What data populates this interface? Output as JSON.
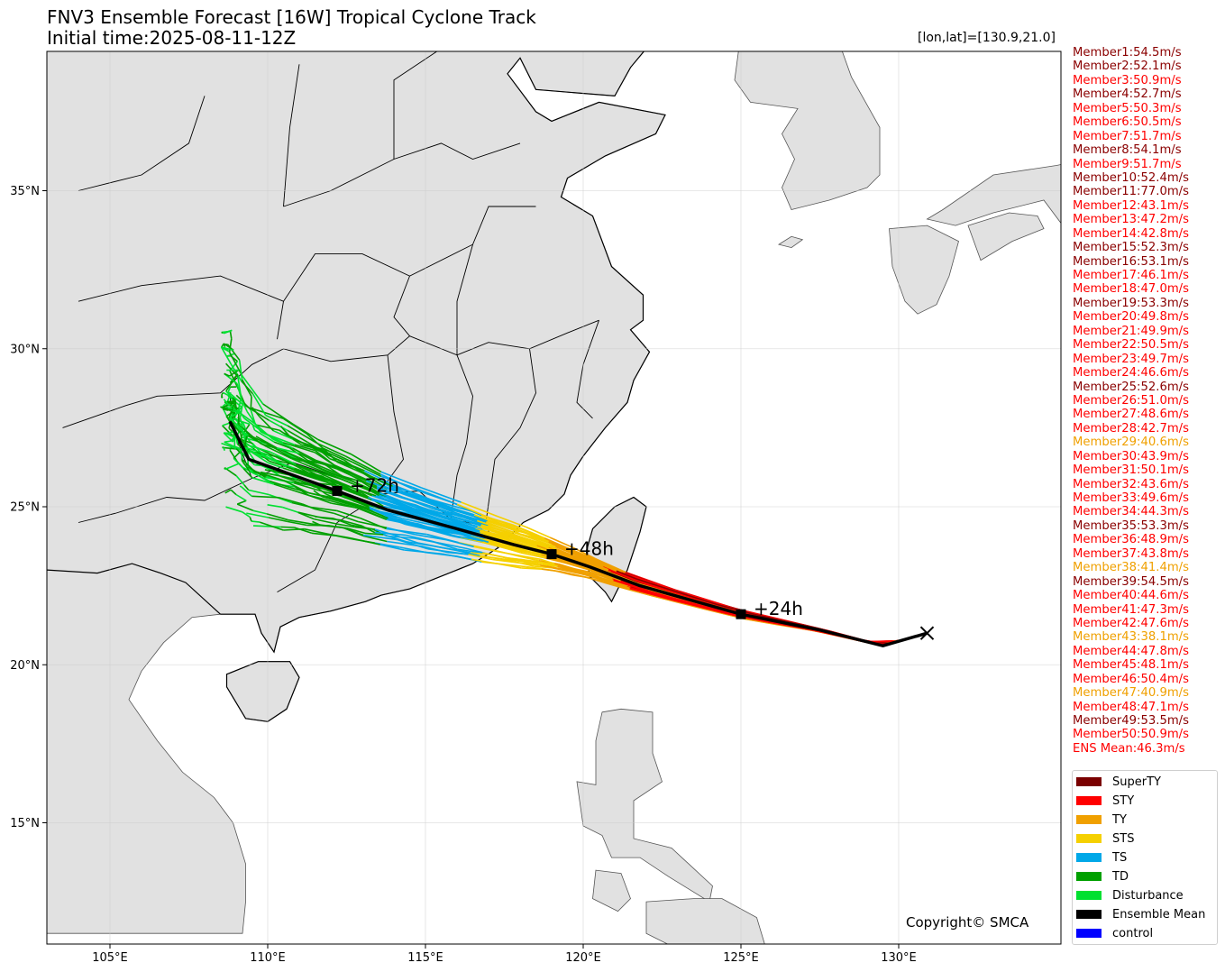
{
  "header": {
    "title_line1": "FNV3 Ensemble Forecast [16W] Tropical Cyclone Track",
    "title_line2": "Initial time:2025-08-11-12Z",
    "coord_readout": "[lon,lat]=[130.9,21.0]"
  },
  "map": {
    "lon_ticks": [
      "105°E",
      "110°E",
      "115°E",
      "120°E",
      "125°E",
      "130°E"
    ],
    "lat_ticks": [
      "15°N",
      "20°N",
      "25°N",
      "30°N",
      "35°N"
    ],
    "land_color": "#e1e1e1",
    "sea_color": "#ffffff",
    "copyright": "Copyright© SMCA",
    "time_labels": [
      "+24h",
      "+48h",
      "+72h"
    ],
    "initial_position": [
      130.9,
      21.0
    ],
    "ensemble_mean_track": [
      [
        130.9,
        21.0
      ],
      [
        129.5,
        20.6
      ],
      [
        127.5,
        21.1
      ],
      [
        125.0,
        21.6
      ],
      [
        121.8,
        22.5
      ],
      [
        120.2,
        23.1
      ],
      [
        119.0,
        23.5
      ],
      [
        117.8,
        23.8
      ],
      [
        116.0,
        24.3
      ],
      [
        113.8,
        24.9
      ],
      [
        112.2,
        25.5
      ],
      [
        110.8,
        26.0
      ],
      [
        109.4,
        26.5
      ],
      [
        109.1,
        27.1
      ],
      [
        108.8,
        27.7
      ]
    ],
    "mean_markers": [
      {
        "label": "+24h",
        "lon": 125.0,
        "lat": 21.6
      },
      {
        "label": "+48h",
        "lon": 119.0,
        "lat": 23.5
      },
      {
        "label": "+72h",
        "lon": 112.2,
        "lat": 25.5
      }
    ]
  },
  "members": [
    {
      "label": "Member1:54.5m/s",
      "color": "#8b0000"
    },
    {
      "label": "Member2:52.1m/s",
      "color": "#8b0000"
    },
    {
      "label": "Member3:50.9m/s",
      "color": "#ff0000"
    },
    {
      "label": "Member4:52.7m/s",
      "color": "#8b0000"
    },
    {
      "label": "Member5:50.3m/s",
      "color": "#ff0000"
    },
    {
      "label": "Member6:50.5m/s",
      "color": "#ff0000"
    },
    {
      "label": "Member7:51.7m/s",
      "color": "#ff0000"
    },
    {
      "label": "Member8:54.1m/s",
      "color": "#8b0000"
    },
    {
      "label": "Member9:51.7m/s",
      "color": "#ff0000"
    },
    {
      "label": "Member10:52.4m/s",
      "color": "#8b0000"
    },
    {
      "label": "Member11:77.0m/s",
      "color": "#8b0000"
    },
    {
      "label": "Member12:43.1m/s",
      "color": "#ff0000"
    },
    {
      "label": "Member13:47.2m/s",
      "color": "#ff0000"
    },
    {
      "label": "Member14:42.8m/s",
      "color": "#ff0000"
    },
    {
      "label": "Member15:52.3m/s",
      "color": "#8b0000"
    },
    {
      "label": "Member16:53.1m/s",
      "color": "#8b0000"
    },
    {
      "label": "Member17:46.1m/s",
      "color": "#ff0000"
    },
    {
      "label": "Member18:47.0m/s",
      "color": "#ff0000"
    },
    {
      "label": "Member19:53.3m/s",
      "color": "#8b0000"
    },
    {
      "label": "Member20:49.8m/s",
      "color": "#ff0000"
    },
    {
      "label": "Member21:49.9m/s",
      "color": "#ff0000"
    },
    {
      "label": "Member22:50.5m/s",
      "color": "#ff0000"
    },
    {
      "label": "Member23:49.7m/s",
      "color": "#ff0000"
    },
    {
      "label": "Member24:46.6m/s",
      "color": "#ff0000"
    },
    {
      "label": "Member25:52.6m/s",
      "color": "#8b0000"
    },
    {
      "label": "Member26:51.0m/s",
      "color": "#ff0000"
    },
    {
      "label": "Member27:48.6m/s",
      "color": "#ff0000"
    },
    {
      "label": "Member28:42.7m/s",
      "color": "#ff0000"
    },
    {
      "label": "Member29:40.6m/s",
      "color": "#f0a000"
    },
    {
      "label": "Member30:43.9m/s",
      "color": "#ff0000"
    },
    {
      "label": "Member31:50.1m/s",
      "color": "#ff0000"
    },
    {
      "label": "Member32:43.6m/s",
      "color": "#ff0000"
    },
    {
      "label": "Member33:49.6m/s",
      "color": "#ff0000"
    },
    {
      "label": "Member34:44.3m/s",
      "color": "#ff0000"
    },
    {
      "label": "Member35:53.3m/s",
      "color": "#8b0000"
    },
    {
      "label": "Member36:48.9m/s",
      "color": "#ff0000"
    },
    {
      "label": "Member37:43.8m/s",
      "color": "#ff0000"
    },
    {
      "label": "Member38:41.4m/s",
      "color": "#f0a000"
    },
    {
      "label": "Member39:54.5m/s",
      "color": "#8b0000"
    },
    {
      "label": "Member40:44.6m/s",
      "color": "#ff0000"
    },
    {
      "label": "Member41:47.3m/s",
      "color": "#ff0000"
    },
    {
      "label": "Member42:47.6m/s",
      "color": "#ff0000"
    },
    {
      "label": "Member43:38.1m/s",
      "color": "#f0a000"
    },
    {
      "label": "Member44:47.8m/s",
      "color": "#ff0000"
    },
    {
      "label": "Member45:48.1m/s",
      "color": "#ff0000"
    },
    {
      "label": "Member46:50.4m/s",
      "color": "#ff0000"
    },
    {
      "label": "Member47:40.9m/s",
      "color": "#f0a000"
    },
    {
      "label": "Member48:47.1m/s",
      "color": "#ff0000"
    },
    {
      "label": "Member49:53.5m/s",
      "color": "#8b0000"
    },
    {
      "label": "Member50:50.9m/s",
      "color": "#ff0000"
    },
    {
      "label": "ENS Mean:46.3m/s",
      "color": "#ff0000"
    }
  ],
  "legend": [
    {
      "label": "SuperTY",
      "color": "#7a0000"
    },
    {
      "label": "STY",
      "color": "#ff0000"
    },
    {
      "label": "TY",
      "color": "#f0a000"
    },
    {
      "label": "STS",
      "color": "#f5d000"
    },
    {
      "label": "TS",
      "color": "#00a8e8"
    },
    {
      "label": "TD",
      "color": "#00a000"
    },
    {
      "label": "Disturbance",
      "color": "#00e030"
    },
    {
      "label": "Ensemble Mean",
      "color": "#000000"
    },
    {
      "label": "control",
      "color": "#0000ff"
    }
  ]
}
